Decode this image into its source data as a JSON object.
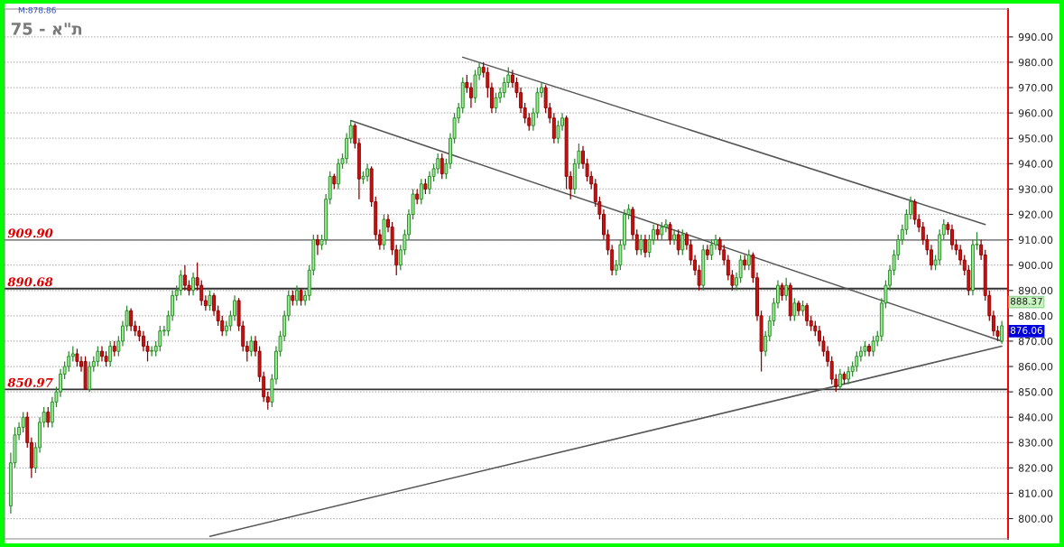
{
  "chart_data": {
    "type": "candlestick",
    "title": "75 - א\"ת",
    "categories": [
      null,
      null,
      null,
      null,
      null,
      null,
      null,
      null,
      null,
      null,
      null,
      null,
      null,
      null,
      null,
      null,
      null,
      null,
      null,
      null,
      null,
      null,
      null,
      null,
      null,
      null,
      null,
      null,
      null,
      null,
      null,
      null,
      null,
      null,
      null,
      null,
      null,
      null,
      null,
      null,
      null,
      null,
      null,
      null,
      null,
      null,
      null,
      null,
      null,
      null,
      null,
      null,
      null,
      null,
      null,
      null,
      null,
      null,
      null,
      null,
      null,
      null,
      null,
      null,
      null,
      null,
      null,
      null,
      null,
      null,
      null,
      null,
      null,
      null,
      null,
      null,
      null,
      null,
      null,
      null,
      null,
      null,
      null,
      null,
      null,
      null,
      null,
      null,
      null,
      null,
      null,
      null,
      null,
      null,
      null,
      null,
      null,
      null,
      null,
      null,
      null,
      null,
      null,
      null,
      null,
      null,
      null,
      null,
      null,
      null,
      null,
      null,
      null,
      null,
      null,
      null,
      null,
      null,
      null,
      null,
      null,
      null,
      null,
      null,
      null,
      null,
      null,
      null,
      null,
      null,
      null,
      null,
      null,
      null,
      null,
      null,
      null,
      null,
      null,
      null,
      null,
      null,
      null,
      null,
      null,
      null,
      null,
      null,
      null,
      null,
      null,
      null,
      null,
      null,
      null,
      null,
      null,
      null,
      null,
      null,
      null,
      null,
      null,
      null,
      null,
      null,
      null,
      null,
      null,
      null,
      null,
      null,
      null,
      null,
      null,
      null,
      null,
      null,
      null,
      null,
      null,
      null,
      null,
      null,
      null,
      null,
      null,
      null,
      null,
      null,
      null,
      null,
      null,
      null,
      null,
      null,
      null,
      null,
      null,
      null,
      null,
      null,
      null,
      null,
      null,
      null,
      null,
      null,
      null,
      null,
      null,
      null,
      null,
      null,
      null,
      null,
      null,
      null,
      null,
      null,
      null,
      null,
      null,
      null,
      null,
      null,
      null,
      null,
      null,
      null,
      null,
      null,
      null,
      null,
      null,
      null,
      null,
      null,
      null,
      null
    ],
    "ohlc": [
      [
        805,
        826,
        802,
        822
      ],
      [
        822,
        836,
        820,
        833
      ],
      [
        833,
        838,
        831,
        836
      ],
      [
        836,
        842,
        834,
        840
      ],
      [
        840,
        842,
        828,
        830
      ],
      [
        830,
        832,
        816,
        820
      ],
      [
        820,
        830,
        818,
        828
      ],
      [
        828,
        840,
        826,
        838
      ],
      [
        838,
        844,
        836,
        842
      ],
      [
        842,
        844,
        836,
        838
      ],
      [
        838,
        848,
        836,
        846
      ],
      [
        846,
        852,
        844,
        850
      ],
      [
        850,
        859,
        848,
        857
      ],
      [
        857,
        862,
        855,
        860
      ],
      [
        860,
        866,
        858,
        864
      ],
      [
        864,
        868,
        862,
        865
      ],
      [
        865,
        867,
        860,
        862
      ],
      [
        862,
        864,
        858,
        860
      ],
      [
        862,
        864,
        851,
        851
      ],
      [
        851,
        862,
        850,
        860
      ],
      [
        860,
        864,
        858,
        862
      ],
      [
        862,
        868,
        860,
        866
      ],
      [
        866,
        868,
        862,
        864
      ],
      [
        864,
        866,
        860,
        862
      ],
      [
        862,
        870,
        860,
        868
      ],
      [
        868,
        870,
        864,
        866
      ],
      [
        866,
        872,
        864,
        870
      ],
      [
        870,
        878,
        868,
        876
      ],
      [
        876,
        884,
        874,
        882
      ],
      [
        882,
        883,
        874,
        876
      ],
      [
        876,
        878,
        872,
        874
      ],
      [
        874,
        876,
        870,
        872
      ],
      [
        872,
        874,
        866,
        868
      ],
      [
        868,
        870,
        862,
        866
      ],
      [
        866,
        868,
        864,
        866
      ],
      [
        866,
        870,
        864,
        868
      ],
      [
        868,
        876,
        866,
        874
      ],
      [
        874,
        876,
        872,
        874
      ],
      [
        874,
        882,
        872,
        880
      ],
      [
        880,
        890,
        878,
        888
      ],
      [
        888,
        892,
        886,
        890
      ],
      [
        890,
        898,
        888,
        896
      ],
      [
        896,
        900,
        890,
        892
      ],
      [
        892,
        894,
        888,
        890
      ],
      [
        890,
        897,
        888,
        895
      ],
      [
        895,
        901,
        890,
        892
      ],
      [
        892,
        894,
        884,
        886
      ],
      [
        886,
        888,
        882,
        884
      ],
      [
        884,
        890,
        882,
        888
      ],
      [
        888,
        889,
        880,
        882
      ],
      [
        882,
        884,
        876,
        878
      ],
      [
        878,
        880,
        872,
        874
      ],
      [
        874,
        878,
        872,
        876
      ],
      [
        876,
        882,
        874,
        880
      ],
      [
        880,
        888,
        878,
        886
      ],
      [
        886,
        887,
        874,
        876
      ],
      [
        876,
        878,
        866,
        868
      ],
      [
        868,
        870,
        862,
        866
      ],
      [
        866,
        872,
        864,
        870
      ],
      [
        870,
        872,
        864,
        866
      ],
      [
        866,
        868,
        854,
        856
      ],
      [
        856,
        858,
        846,
        848
      ],
      [
        848,
        850,
        843,
        846
      ],
      [
        846,
        857,
        844,
        855
      ],
      [
        855,
        868,
        853,
        866
      ],
      [
        866,
        874,
        864,
        872
      ],
      [
        872,
        882,
        870,
        880
      ],
      [
        880,
        890,
        878,
        888
      ],
      [
        888,
        890,
        884,
        886
      ],
      [
        886,
        892,
        884,
        890
      ],
      [
        890,
        891,
        884,
        886
      ],
      [
        886,
        890,
        884,
        888
      ],
      [
        888,
        900,
        886,
        898
      ],
      [
        898,
        912,
        896,
        910
      ],
      [
        910,
        912,
        904,
        908
      ],
      [
        908,
        912,
        906,
        910
      ],
      [
        910,
        928,
        908,
        926
      ],
      [
        926,
        937,
        924,
        935
      ],
      [
        935,
        936,
        930,
        932
      ],
      [
        932,
        942,
        930,
        940
      ],
      [
        940,
        944,
        938,
        942
      ],
      [
        942,
        952,
        940,
        950
      ],
      [
        950,
        957,
        948,
        955
      ],
      [
        955,
        956,
        946,
        948
      ],
      [
        948,
        950,
        926,
        934
      ],
      [
        934,
        937,
        932,
        935
      ],
      [
        935,
        940,
        933,
        938
      ],
      [
        938,
        939,
        923,
        925
      ],
      [
        925,
        927,
        910,
        912
      ],
      [
        912,
        914,
        906,
        908
      ],
      [
        908,
        920,
        906,
        918
      ],
      [
        918,
        920,
        913,
        915
      ],
      [
        915,
        917,
        904,
        906
      ],
      [
        906,
        908,
        896,
        900
      ],
      [
        900,
        908,
        898,
        906
      ],
      [
        906,
        914,
        904,
        912
      ],
      [
        912,
        922,
        910,
        920
      ],
      [
        920,
        930,
        918,
        928
      ],
      [
        928,
        930,
        924,
        926
      ],
      [
        926,
        934,
        924,
        932
      ],
      [
        932,
        934,
        928,
        930
      ],
      [
        930,
        937,
        928,
        935
      ],
      [
        935,
        940,
        933,
        938
      ],
      [
        938,
        944,
        936,
        942
      ],
      [
        942,
        944,
        934,
        936
      ],
      [
        936,
        942,
        934,
        940
      ],
      [
        940,
        952,
        938,
        950
      ],
      [
        950,
        960,
        948,
        958
      ],
      [
        958,
        964,
        956,
        962
      ],
      [
        962,
        974,
        960,
        972
      ],
      [
        972,
        975,
        968,
        970
      ],
      [
        970,
        972,
        962,
        966
      ],
      [
        966,
        977,
        964,
        975
      ],
      [
        975,
        980,
        973,
        978
      ],
      [
        978,
        980,
        974,
        976
      ],
      [
        976,
        978,
        966,
        970
      ],
      [
        970,
        972,
        960,
        962
      ],
      [
        962,
        968,
        960,
        966
      ],
      [
        966,
        970,
        964,
        968
      ],
      [
        968,
        974,
        966,
        972
      ],
      [
        972,
        978,
        970,
        975
      ],
      [
        975,
        977,
        970,
        972
      ],
      [
        972,
        974,
        966,
        968
      ],
      [
        968,
        970,
        960,
        962
      ],
      [
        962,
        964,
        956,
        958
      ],
      [
        958,
        960,
        953,
        955
      ],
      [
        955,
        962,
        953,
        960
      ],
      [
        960,
        970,
        958,
        968
      ],
      [
        968,
        972,
        966,
        970
      ],
      [
        970,
        971,
        960,
        962
      ],
      [
        962,
        964,
        956,
        958
      ],
      [
        958,
        960,
        948,
        950
      ],
      [
        950,
        957,
        948,
        955
      ],
      [
        955,
        960,
        953,
        958
      ],
      [
        958,
        959,
        930,
        935
      ],
      [
        935,
        937,
        926,
        930
      ],
      [
        930,
        942,
        928,
        940
      ],
      [
        940,
        948,
        938,
        945
      ],
      [
        945,
        947,
        938,
        940
      ],
      [
        940,
        942,
        933,
        935
      ],
      [
        935,
        937,
        930,
        932
      ],
      [
        932,
        934,
        923,
        925
      ],
      [
        925,
        927,
        918,
        920
      ],
      [
        920,
        922,
        910,
        912
      ],
      [
        912,
        914,
        904,
        906
      ],
      [
        906,
        908,
        896,
        898
      ],
      [
        898,
        902,
        896,
        900
      ],
      [
        900,
        910,
        898,
        908
      ],
      [
        908,
        922,
        906,
        920
      ],
      [
        920,
        924,
        918,
        922
      ],
      [
        922,
        923,
        910,
        912
      ],
      [
        912,
        914,
        904,
        906
      ],
      [
        906,
        912,
        904,
        910
      ],
      [
        910,
        912,
        903,
        905
      ],
      [
        905,
        912,
        903,
        910
      ],
      [
        910,
        916,
        908,
        914
      ],
      [
        914,
        916,
        910,
        912
      ],
      [
        912,
        917,
        910,
        915
      ],
      [
        915,
        918,
        913,
        916
      ],
      [
        916,
        917,
        908,
        910
      ],
      [
        910,
        914,
        908,
        912
      ],
      [
        912,
        914,
        904,
        906
      ],
      [
        906,
        914,
        904,
        912
      ],
      [
        912,
        913,
        906,
        908
      ],
      [
        908,
        910,
        900,
        902
      ],
      [
        902,
        904,
        896,
        898
      ],
      [
        898,
        900,
        890,
        892
      ],
      [
        892,
        908,
        890,
        906
      ],
      [
        906,
        908,
        902,
        904
      ],
      [
        904,
        910,
        902,
        908
      ],
      [
        908,
        912,
        906,
        910
      ],
      [
        910,
        911,
        904,
        906
      ],
      [
        906,
        908,
        900,
        902
      ],
      [
        902,
        904,
        894,
        896
      ],
      [
        896,
        898,
        890,
        892
      ],
      [
        892,
        897,
        890,
        895
      ],
      [
        895,
        904,
        893,
        902
      ],
      [
        902,
        904,
        898,
        900
      ],
      [
        900,
        906,
        898,
        904
      ],
      [
        904,
        905,
        893,
        895
      ],
      [
        895,
        897,
        878,
        880
      ],
      [
        880,
        882,
        858,
        866
      ],
      [
        866,
        874,
        864,
        872
      ],
      [
        872,
        880,
        870,
        878
      ],
      [
        878,
        887,
        876,
        885
      ],
      [
        885,
        894,
        883,
        892
      ],
      [
        892,
        893,
        886,
        888
      ],
      [
        888,
        895,
        886,
        892
      ],
      [
        892,
        893,
        878,
        880
      ],
      [
        880,
        887,
        878,
        885
      ],
      [
        885,
        886,
        880,
        882
      ],
      [
        882,
        886,
        880,
        884
      ],
      [
        884,
        885,
        876,
        878
      ],
      [
        878,
        880,
        874,
        876
      ],
      [
        876,
        878,
        872,
        874
      ],
      [
        874,
        876,
        868,
        870
      ],
      [
        870,
        872,
        864,
        866
      ],
      [
        866,
        868,
        860,
        862
      ],
      [
        862,
        864,
        853,
        855
      ],
      [
        855,
        857,
        850,
        852
      ],
      [
        852,
        859,
        851,
        857
      ],
      [
        857,
        858,
        853,
        855
      ],
      [
        855,
        860,
        853,
        858
      ],
      [
        858,
        862,
        856,
        860
      ],
      [
        860,
        866,
        858,
        864
      ],
      [
        864,
        868,
        862,
        866
      ],
      [
        866,
        870,
        864,
        868
      ],
      [
        868,
        869,
        864,
        866
      ],
      [
        866,
        872,
        864,
        870
      ],
      [
        870,
        874,
        868,
        872
      ],
      [
        872,
        887,
        870,
        885
      ],
      [
        885,
        894,
        883,
        892
      ],
      [
        892,
        900,
        890,
        898
      ],
      [
        898,
        906,
        896,
        904
      ],
      [
        904,
        912,
        902,
        910
      ],
      [
        910,
        916,
        908,
        914
      ],
      [
        914,
        922,
        912,
        920
      ],
      [
        920,
        927,
        918,
        925
      ],
      [
        925,
        926,
        916,
        918
      ],
      [
        918,
        920,
        913,
        915
      ],
      [
        915,
        917,
        908,
        910
      ],
      [
        910,
        912,
        904,
        906
      ],
      [
        906,
        908,
        898,
        900
      ],
      [
        900,
        904,
        898,
        902
      ],
      [
        902,
        914,
        900,
        912
      ],
      [
        912,
        918,
        910,
        916
      ],
      [
        916,
        917,
        912,
        914
      ],
      [
        914,
        916,
        906,
        908
      ],
      [
        908,
        910,
        904,
        906
      ],
      [
        906,
        908,
        900,
        902
      ],
      [
        902,
        904,
        896,
        898
      ],
      [
        898,
        900,
        888,
        890
      ],
      [
        890,
        910,
        888,
        908
      ],
      [
        908,
        913,
        906,
        908
      ],
      [
        908,
        910,
        902,
        904
      ],
      [
        904,
        906,
        886,
        888
      ],
      [
        888,
        890,
        878,
        880
      ],
      [
        880,
        882,
        872,
        874
      ],
      [
        874,
        876,
        870,
        872
      ],
      [
        870,
        878,
        869,
        876.06
      ]
    ],
    "series": [
      {
        "type": "line",
        "values": [
          null,
          null,
          null,
          null,
          null,
          null,
          null,
          null,
          null,
          null,
          null,
          null,
          null,
          null,
          null,
          null,
          null,
          null,
          null,
          null,
          null,
          null,
          null,
          null,
          null,
          null,
          null,
          null,
          null,
          null,
          null,
          null,
          null,
          null,
          null,
          null,
          null,
          null,
          null,
          null,
          null,
          null,
          null,
          null,
          null,
          null,
          null,
          null,
          null,
          null,
          null,
          null,
          null,
          null,
          null,
          null,
          null,
          null,
          null,
          null,
          null,
          null,
          null,
          null,
          null,
          null,
          null,
          null,
          null,
          null,
          null,
          null,
          null,
          null,
          null,
          null,
          null,
          null,
          null,
          null,
          null,
          null,
          null,
          null,
          null,
          null,
          null,
          null,
          null,
          null,
          null,
          null,
          null,
          null,
          null,
          null,
          null,
          null,
          null,
          null,
          null,
          null,
          null,
          null,
          null,
          null,
          null,
          null,
          null,
          982,
          null,
          null,
          null,
          null,
          null,
          null,
          null,
          null,
          null,
          null,
          null,
          null,
          null,
          null,
          null,
          null,
          null,
          null,
          null,
          null,
          null,
          null,
          null,
          null,
          null,
          null,
          null,
          null,
          null,
          null,
          null,
          null,
          null,
          null,
          null,
          null,
          null,
          null,
          null,
          null,
          null,
          null,
          null,
          null,
          null,
          null,
          null,
          null,
          null,
          null,
          null,
          null,
          null,
          null,
          null,
          null,
          null,
          null,
          null,
          null,
          null,
          null,
          null,
          null,
          null,
          null,
          null,
          null,
          null,
          null,
          null,
          null,
          null,
          null,
          null,
          null,
          null,
          null,
          null,
          null,
          null,
          null,
          null,
          null,
          null,
          null,
          null,
          null,
          null,
          null,
          null,
          null,
          null,
          null,
          null,
          null,
          null,
          null,
          null,
          null,
          null,
          null,
          null,
          null,
          null,
          null,
          null,
          null,
          null,
          null,
          null,
          null,
          null,
          null,
          null,
          null,
          null,
          null,
          null,
          null,
          null,
          null,
          null,
          null,
          null,
          916,
          null,
          null,
          null,
          null
        ],
        "color": "#555555"
      },
      {
        "type": "line",
        "values": [
          null,
          null,
          null,
          null,
          null,
          null,
          null,
          null,
          null,
          null,
          null,
          null,
          null,
          null,
          null,
          null,
          null,
          null,
          null,
          null,
          null,
          null,
          null,
          null,
          null,
          null,
          null,
          null,
          null,
          null,
          null,
          null,
          null,
          null,
          null,
          null,
          null,
          null,
          null,
          null,
          null,
          null,
          null,
          null,
          null,
          null,
          null,
          null,
          null,
          null,
          null,
          null,
          null,
          null,
          null,
          null,
          null,
          null,
          null,
          null,
          null,
          null,
          null,
          null,
          null,
          null,
          null,
          null,
          null,
          null,
          null,
          null,
          null,
          null,
          null,
          null,
          null,
          null,
          null,
          null,
          null,
          null,
          957,
          null,
          null,
          null,
          null,
          null,
          null,
          null,
          null,
          null,
          null,
          null,
          null,
          null,
          null,
          null,
          null,
          null,
          null,
          null,
          null,
          null,
          null,
          null,
          null,
          null,
          null,
          null,
          null,
          null,
          null,
          null,
          null,
          null,
          null,
          null,
          null,
          null,
          null,
          null,
          null,
          null,
          null,
          null,
          null,
          null,
          null,
          null,
          null,
          null,
          null,
          null,
          null,
          null,
          null,
          null,
          null,
          null,
          null,
          null,
          null,
          null,
          null,
          null,
          null,
          null,
          null,
          null,
          null,
          null,
          null,
          null,
          null,
          null,
          null,
          null,
          null,
          null,
          null,
          null,
          null,
          null,
          null,
          null,
          null,
          null,
          null,
          null,
          null,
          null,
          null,
          null,
          null,
          null,
          null,
          null,
          null,
          null,
          null,
          null,
          null,
          null,
          null,
          null,
          null,
          null,
          null,
          null,
          null,
          null,
          null,
          null,
          null,
          null,
          null,
          null,
          null,
          null,
          null,
          null,
          null,
          null,
          null,
          null,
          null,
          null,
          null,
          null,
          null,
          null,
          null,
          null,
          null,
          null,
          null,
          null,
          null,
          null,
          null,
          null,
          null,
          null,
          null,
          null,
          null,
          null,
          null,
          null,
          null,
          null,
          null,
          null,
          null,
          null,
          null,
          null,
          null,
          870
        ],
        "color": "#555555"
      },
      {
        "type": "line",
        "values": [
          null,
          null,
          null,
          null,
          null,
          null,
          null,
          null,
          null,
          null,
          null,
          null,
          null,
          null,
          null,
          null,
          null,
          null,
          null,
          null,
          null,
          null,
          null,
          null,
          null,
          null,
          null,
          null,
          null,
          null,
          null,
          null,
          null,
          null,
          null,
          null,
          null,
          null,
          null,
          null,
          null,
          null,
          null,
          null,
          null,
          null,
          null,
          null,
          793,
          null,
          null,
          null,
          null,
          null,
          null,
          null,
          null,
          null,
          null,
          null,
          null,
          null,
          null,
          null,
          null,
          null,
          null,
          null,
          null,
          null,
          null,
          null,
          null,
          null,
          null,
          null,
          null,
          null,
          null,
          null,
          null,
          null,
          null,
          null,
          null,
          null,
          null,
          null,
          null,
          null,
          null,
          null,
          null,
          null,
          null,
          null,
          null,
          null,
          null,
          null,
          null,
          null,
          null,
          null,
          null,
          null,
          null,
          null,
          null,
          null,
          null,
          null,
          null,
          null,
          null,
          null,
          null,
          null,
          null,
          null,
          null,
          null,
          null,
          null,
          null,
          null,
          null,
          null,
          null,
          null,
          null,
          null,
          null,
          null,
          null,
          null,
          null,
          null,
          null,
          null,
          null,
          null,
          null,
          null,
          null,
          null,
          null,
          null,
          null,
          null,
          null,
          null,
          null,
          null,
          null,
          null,
          null,
          null,
          null,
          null,
          null,
          null,
          null,
          null,
          null,
          null,
          null,
          null,
          null,
          null,
          null,
          null,
          null,
          null,
          null,
          null,
          null,
          null,
          null,
          null,
          null,
          null,
          null,
          null,
          null,
          null,
          null,
          null,
          null,
          null,
          null,
          null,
          null,
          null,
          null,
          null,
          null,
          null,
          null,
          null,
          null,
          null,
          null,
          null,
          null,
          null,
          null,
          null,
          null,
          null,
          null,
          null,
          null,
          null,
          null,
          null,
          null,
          null,
          null,
          null,
          null,
          null,
          null,
          null,
          null,
          null,
          null,
          null,
          null,
          null,
          null,
          null,
          null,
          null,
          null,
          null,
          null,
          null,
          null,
          868
        ],
        "color": "#555555"
      }
    ],
    "ref_lines": [
      {
        "axis": "y",
        "value": 909.9,
        "label": "909.90",
        "color": "#888888"
      },
      {
        "axis": "y",
        "value": 890.68,
        "label": "890.68",
        "color": "#333333"
      },
      {
        "axis": "y",
        "value": 850.97,
        "label": "850.97",
        "color": "#333333"
      }
    ],
    "annotations": [
      "M:878.86",
      "888.37",
      "876.06"
    ],
    "ylim": [
      792,
      1001
    ],
    "yticks": [
      {
        "value": 800,
        "label": "800.00"
      },
      {
        "value": 810,
        "label": "810.00"
      },
      {
        "value": 820,
        "label": "820.00"
      },
      {
        "value": 830,
        "label": "830.00"
      },
      {
        "value": 840,
        "label": "840.00"
      },
      {
        "value": 850,
        "label": "850.00"
      },
      {
        "value": 860,
        "label": "860.00"
      },
      {
        "value": 870,
        "label": "870.00"
      },
      {
        "value": 880,
        "label": "880.00"
      },
      {
        "value": 890,
        "label": "890.00"
      },
      {
        "value": 900,
        "label": "900.00"
      },
      {
        "value": 910,
        "label": "910.00"
      },
      {
        "value": 920,
        "label": "920.00"
      },
      {
        "value": 930,
        "label": "930.00"
      },
      {
        "value": 940,
        "label": "940.00"
      },
      {
        "value": 950,
        "label": "950.00"
      },
      {
        "value": 960,
        "label": "960.00"
      },
      {
        "value": 970,
        "label": "970.00"
      },
      {
        "value": 980,
        "label": "980.00"
      },
      {
        "value": 990,
        "label": "990.00"
      }
    ],
    "grid": "y",
    "tick_labels": "y"
  }
}
